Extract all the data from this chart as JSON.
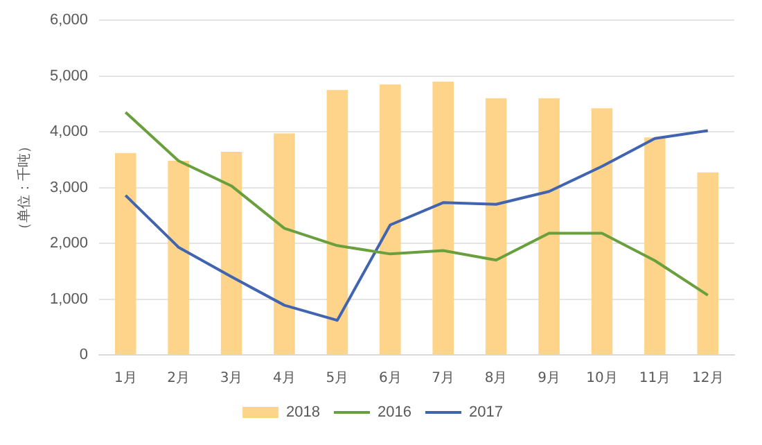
{
  "chart_data": {
    "type": "bar",
    "ylabel": "（单位：千吨）",
    "categories": [
      "1月",
      "2月",
      "3月",
      "4月",
      "5月",
      "6月",
      "7月",
      "8月",
      "9月",
      "10月",
      "11月",
      "12月"
    ],
    "series": [
      {
        "name": "2018",
        "color": "#fdd48a",
        "values": [
          3620,
          3480,
          3640,
          3970,
          4750,
          4850,
          4900,
          4600,
          4600,
          4420,
          3900,
          3270
        ]
      },
      {
        "name": "2016",
        "type": "line",
        "color": "#6a9f3e",
        "values": [
          4350,
          3480,
          3030,
          2270,
          1960,
          1810,
          1870,
          1700,
          2180,
          2180,
          1690,
          1070
        ]
      },
      {
        "name": "2017",
        "type": "line",
        "color": "#4064b0",
        "values": [
          2860,
          1930,
          1400,
          890,
          620,
          2330,
          2730,
          2700,
          2930,
          3380,
          3880,
          4020
        ]
      }
    ],
    "ylim": [
      0,
      6000
    ],
    "yticks": [
      {
        "value": 0,
        "label": "0"
      },
      {
        "value": 1000,
        "label": "1,000"
      },
      {
        "value": 2000,
        "label": "2,000"
      },
      {
        "value": 3000,
        "label": "3,000"
      },
      {
        "value": 4000,
        "label": "4,000"
      },
      {
        "value": 5000,
        "label": "5,000"
      },
      {
        "value": 6000,
        "label": "6,000"
      }
    ],
    "grid": "y",
    "legend": "bottom",
    "marker": "none"
  }
}
